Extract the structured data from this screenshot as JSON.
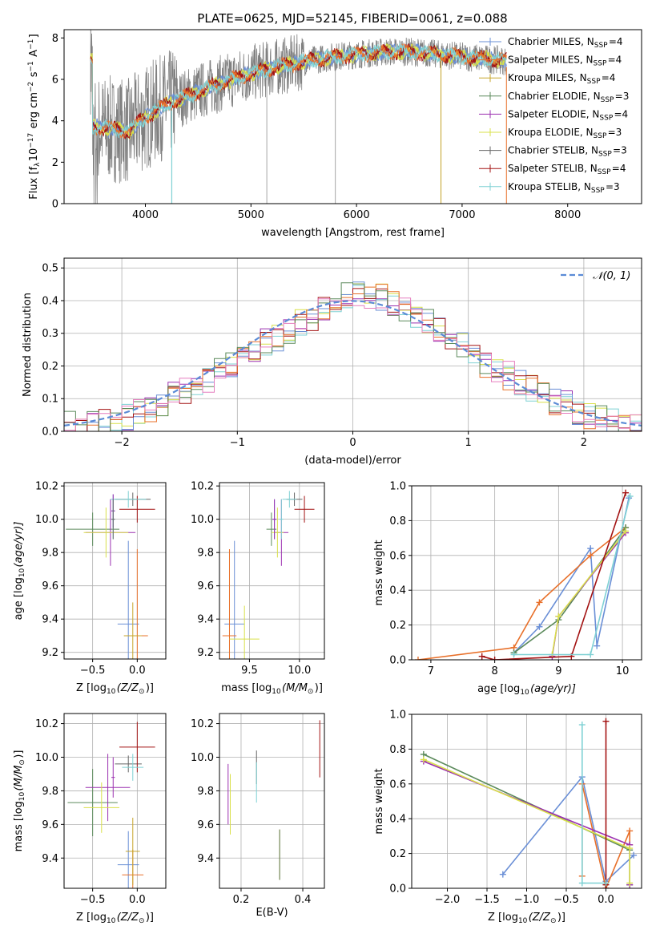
{
  "title": "PLATE=0625, MJD=52145, FIBERID=0061, z=0.088",
  "colors": {
    "Chabrier MILES": "#6a8fd6",
    "Salpeter MILES": "#e8702a",
    "Kroupa MILES": "#c7a52a",
    "Chabrier ELODIE": "#5b8a5b",
    "Salpeter ELODIE": "#9b30b0",
    "Kroupa ELODIE": "#d9e04a",
    "Chabrier STELIB": "#666666",
    "Salpeter STELIB": "#a31313",
    "Kroupa STELIB": "#7fd1d4",
    "data": "#808080",
    "normal": "#5b8bd6"
  },
  "chart_data": [
    {
      "id": "spectrum",
      "type": "line",
      "xlabel": "wavelength [Angstrom, rest frame]",
      "ylabel_main": "Flux [f",
      "ylabel_sub": "λ",
      "ylabel_rest": "10",
      "ylabel_exp": "−17",
      "ylabel_tail": " erg cm",
      "ylabel_exp2": "−2",
      "ylabel_s": " s",
      "ylabel_exp3": "−1",
      "ylabel_A": " A",
      "ylabel_exp4": "−1",
      "ylabel_close": "]",
      "xlim": [
        3230,
        8700
      ],
      "ylim": [
        0,
        8.4
      ],
      "xticks": [
        4000,
        5000,
        6000,
        7000,
        8000
      ],
      "yticks": [
        0,
        2,
        4,
        6,
        8
      ],
      "continuum": [
        [
          3500,
          3.7
        ],
        [
          3700,
          3.6
        ],
        [
          3850,
          3.5
        ],
        [
          3950,
          4.0
        ],
        [
          4050,
          4.3
        ],
        [
          4200,
          4.8
        ],
        [
          4400,
          5.2
        ],
        [
          4600,
          5.6
        ],
        [
          4800,
          5.95
        ],
        [
          5000,
          6.3
        ],
        [
          5200,
          6.55
        ],
        [
          5400,
          6.75
        ],
        [
          5600,
          6.95
        ],
        [
          5800,
          7.1
        ],
        [
          6000,
          7.2
        ],
        [
          6200,
          7.3
        ],
        [
          6400,
          7.35
        ],
        [
          6600,
          7.3
        ],
        [
          6800,
          7.2
        ],
        [
          7000,
          7.1
        ],
        [
          7200,
          7.0
        ],
        [
          7400,
          6.9
        ]
      ],
      "legend": [
        {
          "label": "Chabrier MILES, N",
          "sub": "SSP",
          "val": "=4",
          "series": "Chabrier MILES"
        },
        {
          "label": "Salpeter MILES, N",
          "sub": "SSP",
          "val": "=4",
          "series": "Salpeter MILES"
        },
        {
          "label": "Kroupa MILES, N",
          "sub": "SSP",
          "val": "=4",
          "series": "Kroupa MILES"
        },
        {
          "label": "Chabrier ELODIE, N",
          "sub": "SSP",
          "val": "=3",
          "series": "Chabrier ELODIE"
        },
        {
          "label": "Salpeter ELODIE, N",
          "sub": "SSP",
          "val": "=4",
          "series": "Salpeter ELODIE"
        },
        {
          "label": "Kroupa ELODIE, N",
          "sub": "SSP",
          "val": "=3",
          "series": "Kroupa ELODIE"
        },
        {
          "label": "Chabrier STELIB, N",
          "sub": "SSP",
          "val": "=3",
          "series": "Chabrier STELIB"
        },
        {
          "label": "Salpeter STELIB, N",
          "sub": "SSP",
          "val": "=4",
          "series": "Salpeter STELIB"
        },
        {
          "label": "Kroupa STELIB, N",
          "sub": "SSP",
          "val": "=3",
          "series": "Kroupa STELIB"
        }
      ]
    },
    {
      "id": "histogram",
      "type": "histogram",
      "xlabel": "(data-model)/error",
      "ylabel": "Normed distribution",
      "xlim": [
        -2.5,
        2.5
      ],
      "ylim": [
        0,
        0.53
      ],
      "xticks": [
        -2,
        -1,
        0,
        1,
        2
      ],
      "xtick_labels": [
        "−2",
        "−1",
        "0",
        "1",
        "2"
      ],
      "yticks": [
        0.0,
        0.1,
        0.2,
        0.3,
        0.4,
        0.5
      ],
      "legend": "𝒩(0, 1)",
      "bin_width": 0.1,
      "bin_start": -2.5,
      "envelope": [
        0.02,
        0.02,
        0.025,
        0.03,
        0.04,
        0.045,
        0.06,
        0.07,
        0.09,
        0.11,
        0.12,
        0.14,
        0.16,
        0.18,
        0.2,
        0.22,
        0.24,
        0.27,
        0.29,
        0.31,
        0.33,
        0.35,
        0.37,
        0.39,
        0.41,
        0.42,
        0.42,
        0.41,
        0.39,
        0.37,
        0.35,
        0.33,
        0.31,
        0.28,
        0.26,
        0.24,
        0.21,
        0.19,
        0.17,
        0.15,
        0.13,
        0.11,
        0.09,
        0.08,
        0.06,
        0.05,
        0.04,
        0.03,
        0.025,
        0.02
      ]
    },
    {
      "id": "z-age",
      "type": "scatter",
      "xlabel_main": "Z [log",
      "xlabel_sub": "10",
      "xlabel_tail": "(Z/Z",
      "xlabel_sun": "⊙",
      "xlabel_close": ")]",
      "ylabel_main": "age  [log",
      "ylabel_sub": "10",
      "ylabel_tail": "(age/yr)]",
      "xlim": [
        -0.82,
        0.32
      ],
      "ylim": [
        9.16,
        10.22
      ],
      "xticks": [
        -0.5,
        0.0
      ],
      "xtick_labels": [
        "−0.5",
        "0.0"
      ],
      "yticks": [
        9.2,
        9.4,
        9.6,
        9.8,
        10.0,
        10.2
      ],
      "points": [
        {
          "s": "Chabrier MILES",
          "x": -0.1,
          "y": 9.37,
          "xerr": 0.12,
          "yerr": 0.5
        },
        {
          "s": "Salpeter MILES",
          "x": 0.0,
          "y": 9.3,
          "xerr": 0.12,
          "yerr": 0.52
        },
        {
          "s": "Kroupa MILES",
          "x": -0.05,
          "y": 9.3,
          "xerr": 0.1,
          "yerr": 0.2
        },
        {
          "s": "Chabrier ELODIE",
          "x": -0.5,
          "y": 9.94,
          "xerr": 0.3,
          "yerr": 0.1
        },
        {
          "s": "Salpeter ELODIE",
          "x": -0.3,
          "y": 9.92,
          "xerr": 0.28,
          "yerr": 0.2
        },
        {
          "s": "Kroupa ELODIE",
          "x": -0.35,
          "y": 9.92,
          "xerr": 0.25,
          "yerr": 0.15
        },
        {
          "s": "Chabrier STELIB",
          "x": -0.05,
          "y": 10.12,
          "xerr": 0.2,
          "yerr": 0.04
        },
        {
          "s": "Salpeter STELIB",
          "x": 0.0,
          "y": 10.06,
          "xerr": 0.2,
          "yerr": 0.08
        },
        {
          "s": "Kroupa STELIB",
          "x": -0.1,
          "y": 10.12,
          "xerr": 0.2,
          "yerr": 0.05
        },
        {
          "s": "Chabrier MILES",
          "x": -0.27,
          "y": 10.05,
          "xerr": 0.02,
          "yerr": 0.1
        },
        {
          "s": "Salpeter ELODIE",
          "x": -0.27,
          "y": 10.05,
          "xerr": 0.02,
          "yerr": 0.1
        },
        {
          "s": "Kroupa STELIB",
          "x": -0.27,
          "y": 10.0,
          "xerr": 0.02,
          "yerr": 0.12
        },
        {
          "s": "Chabrier STELIB",
          "x": -0.27,
          "y": 10.0,
          "xerr": 0.02,
          "yerr": 0.12
        }
      ]
    },
    {
      "id": "mass-age",
      "type": "scatter",
      "xlabel_main": "mass [log",
      "xlabel_sub": "10",
      "xlabel_tail": "(M/M",
      "xlabel_sun": "⊙",
      "xlabel_close": ")]",
      "xlim": [
        9.2,
        10.25
      ],
      "ylim": [
        9.16,
        10.22
      ],
      "xticks": [
        9.5,
        10.0
      ],
      "xtick_labels": [
        "9.5",
        "10.0"
      ],
      "yticks": [
        9.2,
        9.4,
        9.6,
        9.8,
        10.0,
        10.2
      ],
      "points": [
        {
          "s": "Chabrier MILES",
          "x": 9.35,
          "y": 9.37,
          "xerr": 0.1,
          "yerr": 0.5
        },
        {
          "s": "Salpeter MILES",
          "x": 9.3,
          "y": 9.3,
          "xerr": 0.07,
          "yerr": 0.52
        },
        {
          "s": "Kroupa ELODIE",
          "x": 9.45,
          "y": 9.28,
          "xerr": 0.15,
          "yerr": 0.2
        },
        {
          "s": "Chabrier ELODIE",
          "x": 9.72,
          "y": 9.94,
          "xerr": 0.05,
          "yerr": 0.1
        },
        {
          "s": "Salpeter ELODIE",
          "x": 9.82,
          "y": 9.92,
          "xerr": 0.07,
          "yerr": 0.2
        },
        {
          "s": "Kroupa ELODIE",
          "x": 9.78,
          "y": 9.92,
          "xerr": 0.06,
          "yerr": 0.15
        },
        {
          "s": "Chabrier STELIB",
          "x": 9.95,
          "y": 10.12,
          "xerr": 0.08,
          "yerr": 0.04
        },
        {
          "s": "Salpeter STELIB",
          "x": 10.05,
          "y": 10.06,
          "xerr": 0.1,
          "yerr": 0.08
        },
        {
          "s": "Kroupa STELIB",
          "x": 9.9,
          "y": 10.12,
          "xerr": 0.07,
          "yerr": 0.05
        },
        {
          "s": "Chabrier MILES",
          "x": 9.75,
          "y": 10.0,
          "xerr": 0.02,
          "yerr": 0.12
        },
        {
          "s": "Salpeter ELODIE",
          "x": 9.75,
          "y": 10.0,
          "xerr": 0.02,
          "yerr": 0.12
        },
        {
          "s": "Kroupa STELIB",
          "x": 9.82,
          "y": 10.0,
          "xerr": 0.02,
          "yerr": 0.12
        }
      ]
    },
    {
      "id": "age-weight",
      "type": "line",
      "xlabel_main": "age  [log",
      "xlabel_sub": "10",
      "xlabel_tail": "(age/yr)]",
      "ylabel": "mass weight",
      "xlim": [
        6.7,
        10.3
      ],
      "ylim": [
        0,
        1.0
      ],
      "xticks": [
        7,
        8,
        9,
        10
      ],
      "yticks": [
        0.0,
        0.2,
        0.4,
        0.6,
        0.8,
        1.0
      ],
      "series": [
        {
          "s": "Chabrier MILES",
          "x": [
            8.3,
            8.7,
            9.5,
            9.6,
            10.1
          ],
          "y": [
            0.04,
            0.19,
            0.64,
            0.08,
            0.93
          ]
        },
        {
          "s": "Salpeter MILES",
          "x": [
            6.8,
            8.3,
            8.7,
            9.5,
            10.05
          ],
          "y": [
            0.0,
            0.07,
            0.33,
            0.6,
            0.76
          ]
        },
        {
          "s": "Chabrier ELODIE",
          "x": [
            8.3,
            9.0,
            10.05
          ],
          "y": [
            0.04,
            0.23,
            0.76
          ]
        },
        {
          "s": "Salpeter ELODIE",
          "x": [
            8.9,
            9.0,
            10.05
          ],
          "y": [
            0.02,
            0.25,
            0.73
          ]
        },
        {
          "s": "Kroupa ELODIE",
          "x": [
            8.9,
            9.0,
            10.05
          ],
          "y": [
            0.03,
            0.25,
            0.74
          ]
        },
        {
          "s": "Salpeter STELIB",
          "x": [
            7.8,
            8.0,
            9.2,
            10.05
          ],
          "y": [
            0.02,
            0.0,
            0.02,
            0.96
          ]
        },
        {
          "s": "Kroupa STELIB",
          "x": [
            8.3,
            9.5,
            10.12
          ],
          "y": [
            0.03,
            0.03,
            0.94
          ]
        }
      ]
    },
    {
      "id": "z-mass",
      "type": "scatter",
      "xlabel_main": "Z [log",
      "xlabel_sub": "10",
      "xlabel_tail": "(Z/Z",
      "xlabel_sun": "⊙",
      "xlabel_close": ")]",
      "ylabel_main": "mass [log",
      "ylabel_sub": "10",
      "ylabel_tail": "(M/M",
      "ylabel_sun": "⊙",
      "ylabel_close": ")]",
      "xlim": [
        -0.82,
        0.32
      ],
      "ylim": [
        9.22,
        10.26
      ],
      "xticks": [
        -0.5,
        0.0
      ],
      "xtick_labels": [
        "−0.5",
        "0.0"
      ],
      "yticks": [
        9.4,
        9.6,
        9.8,
        10.0,
        10.2
      ],
      "points": [
        {
          "s": "Chabrier MILES",
          "x": -0.1,
          "y": 9.36,
          "xerr": 0.12,
          "yerr": 0.2
        },
        {
          "s": "Salpeter MILES",
          "x": -0.05,
          "y": 9.3,
          "xerr": 0.12,
          "yerr": 0.15
        },
        {
          "s": "Kroupa MILES",
          "x": -0.05,
          "y": 9.44,
          "xerr": 0.08,
          "yerr": 0.2
        },
        {
          "s": "Chabrier ELODIE",
          "x": -0.5,
          "y": 9.73,
          "xerr": 0.28,
          "yerr": 0.2
        },
        {
          "s": "Salpeter ELODIE",
          "x": -0.33,
          "y": 9.82,
          "xerr": 0.25,
          "yerr": 0.2
        },
        {
          "s": "Kroupa ELODIE",
          "x": -0.4,
          "y": 9.7,
          "xerr": 0.2,
          "yerr": 0.15
        },
        {
          "s": "Chabrier STELIB",
          "x": -0.1,
          "y": 9.96,
          "xerr": 0.15,
          "yerr": 0.05
        },
        {
          "s": "Salpeter STELIB",
          "x": 0.0,
          "y": 10.06,
          "xerr": 0.2,
          "yerr": 0.15
        },
        {
          "s": "Kroupa STELIB",
          "x": -0.05,
          "y": 9.94,
          "xerr": 0.12,
          "yerr": 0.08
        },
        {
          "s": "Salpeter ELODIE",
          "x": -0.27,
          "y": 9.88,
          "xerr": 0.02,
          "yerr": 0.12
        }
      ]
    },
    {
      "id": "ebv-mass",
      "type": "scatter",
      "xlabel": "E(B-V)",
      "xlim": [
        0.13,
        0.47
      ],
      "ylim": [
        9.22,
        10.26
      ],
      "xticks": [
        0.2,
        0.4
      ],
      "xtick_labels": [
        "0.2",
        "0.4"
      ],
      "yticks": [
        9.4,
        9.6,
        9.8,
        10.0,
        10.2
      ],
      "points": [
        {
          "s": "Kroupa ELODIE",
          "x": 0.165,
          "y": 9.72,
          "yerr": 0.18
        },
        {
          "s": "Salpeter ELODIE",
          "x": 0.158,
          "y": 9.78,
          "yerr": 0.18
        },
        {
          "s": "Chabrier STELIB",
          "x": 0.25,
          "y": 9.94,
          "yerr": 0.1
        },
        {
          "s": "Kroupa STELIB",
          "x": 0.25,
          "y": 9.85,
          "yerr": 0.12
        },
        {
          "s": "Salpeter MILES",
          "x": 0.325,
          "y": 9.42,
          "yerr": 0.15
        },
        {
          "s": "Chabrier ELODIE",
          "x": 0.325,
          "y": 9.42,
          "yerr": 0.15
        },
        {
          "s": "Salpeter STELIB",
          "x": 0.455,
          "y": 10.05,
          "yerr": 0.17
        }
      ]
    },
    {
      "id": "z-weight",
      "type": "line",
      "xlabel_main": "Z [log",
      "xlabel_sub": "10",
      "xlabel_tail": "(Z/Z",
      "xlabel_sun": "⊙",
      "xlabel_close": ")]",
      "ylabel": "mass weight",
      "xlim": [
        -2.45,
        0.45
      ],
      "ylim": [
        0,
        1.0
      ],
      "xticks": [
        -2.0,
        -1.5,
        -1.0,
        -0.5,
        0.0
      ],
      "xtick_labels": [
        "−2.0",
        "−1.5",
        "−1.0",
        "−0.5",
        "0.0"
      ],
      "yticks": [
        0.0,
        0.2,
        0.4,
        0.6,
        0.8,
        1.0
      ],
      "series": [
        {
          "s": "Chabrier MILES",
          "x": [
            -1.3,
            -0.3,
            0.0,
            0.35
          ],
          "y": [
            0.08,
            0.64,
            0.04,
            0.19
          ]
        },
        {
          "s": "Salpeter MILES",
          "x": [
            -0.3,
            -0.3,
            0.0,
            0.3,
            0.3
          ],
          "y": [
            0.07,
            0.6,
            0.0,
            0.33,
            0.25
          ]
        },
        {
          "s": "Chabrier ELODIE",
          "x": [
            -2.3,
            0.3,
            0.3
          ],
          "y": [
            0.77,
            0.22,
            0.02
          ]
        },
        {
          "s": "Salpeter ELODIE",
          "x": [
            -2.3,
            0.3,
            0.3
          ],
          "y": [
            0.73,
            0.25,
            0.02
          ]
        },
        {
          "s": "Kroupa ELODIE",
          "x": [
            -2.3,
            0.3,
            0.3
          ],
          "y": [
            0.74,
            0.23,
            0.03
          ]
        },
        {
          "s": "Salpeter STELIB",
          "x": [
            0.0,
            0.0,
            0.0
          ],
          "y": [
            0.96,
            0.02,
            0.0
          ]
        },
        {
          "s": "Kroupa STELIB",
          "x": [
            -0.3,
            -0.3,
            0.0
          ],
          "y": [
            0.94,
            0.03,
            0.03
          ]
        }
      ]
    }
  ]
}
